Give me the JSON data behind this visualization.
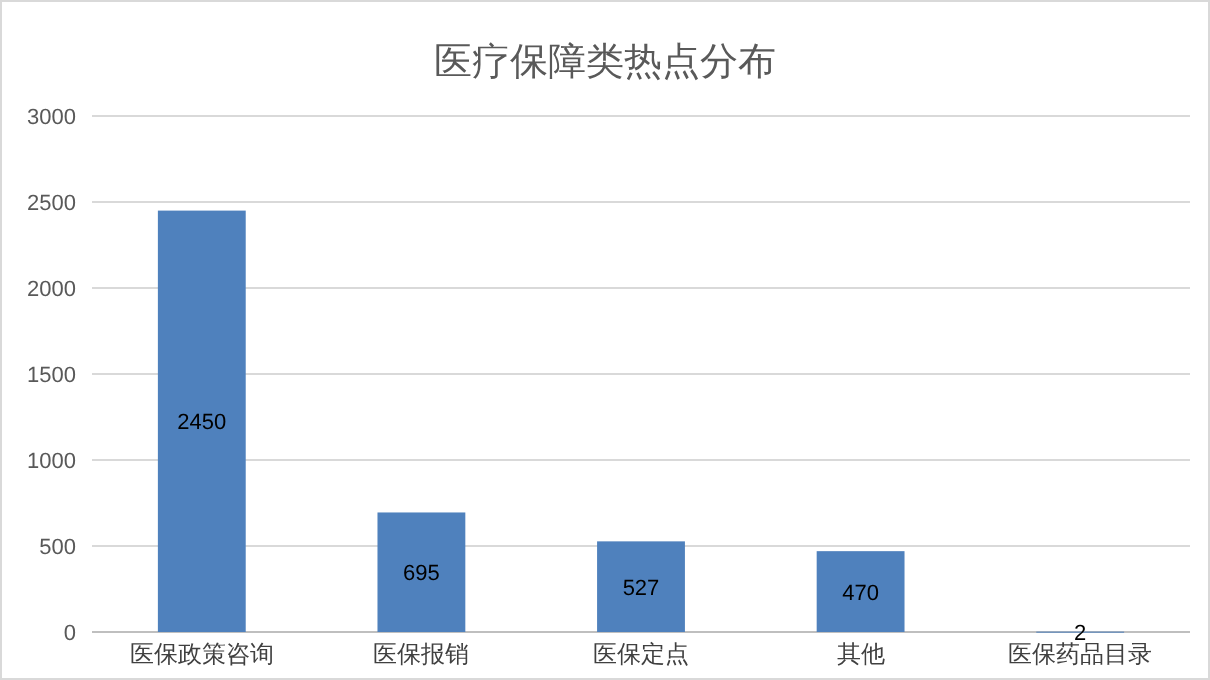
{
  "chart_data": {
    "type": "bar",
    "title": "医疗保障类热点分布",
    "categories": [
      "医保政策咨询",
      "医保报销",
      "医保定点",
      "其他",
      "医保药品目录"
    ],
    "values": [
      2450,
      695,
      527,
      470,
      2
    ],
    "color": "#4f81bd",
    "ylim": [
      0,
      3000
    ],
    "yticks": [
      0,
      500,
      1000,
      1500,
      2000,
      2500,
      3000
    ],
    "grid": "y",
    "data_labels": true
  }
}
